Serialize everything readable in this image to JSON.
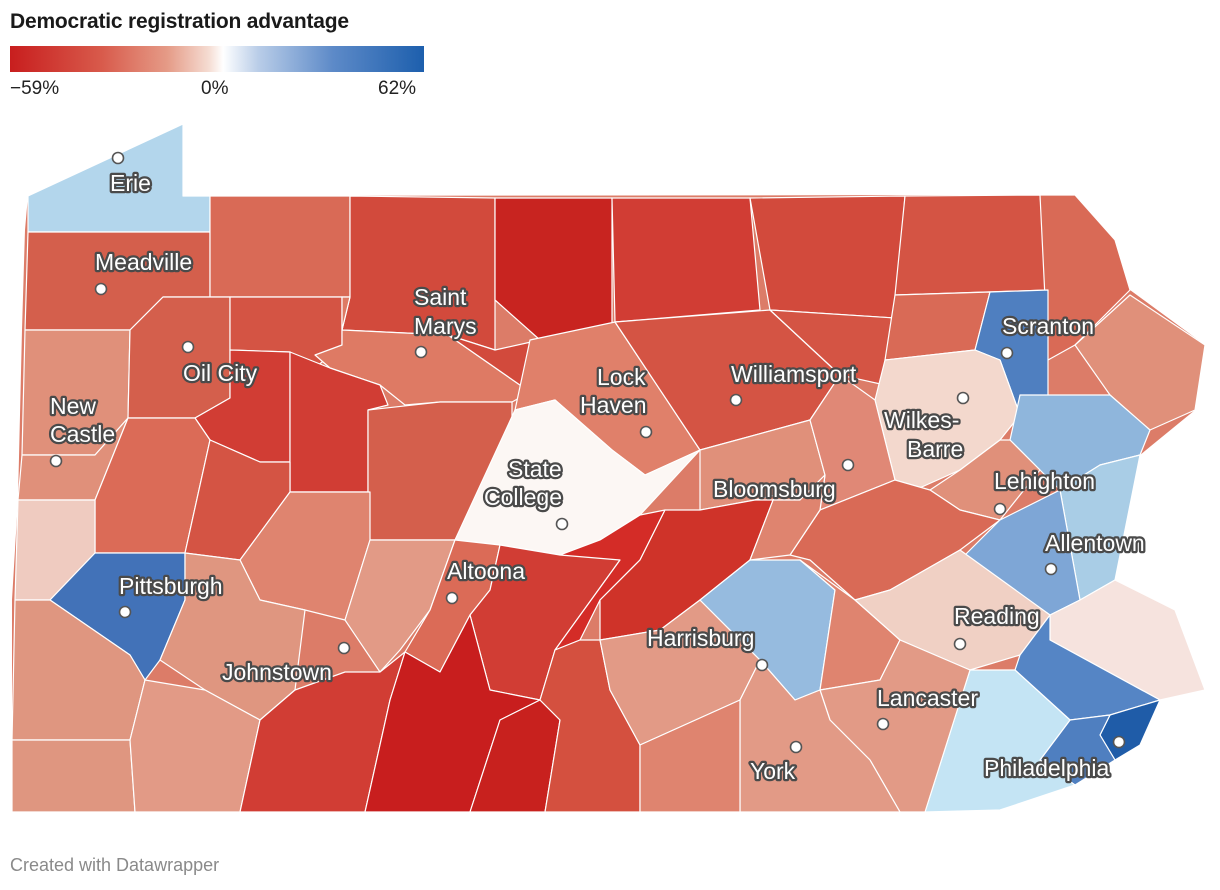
{
  "legend": {
    "title": "Democratic registration advantage",
    "min_label": "−59%",
    "mid_label": "0%",
    "max_label": "62%",
    "min_value": -59,
    "max_value": 62,
    "colors": {
      "low": "#c81e1e",
      "mid": "#ffffff",
      "high": "#1d5fad"
    }
  },
  "footer": "Created with Datawrapper",
  "cities": [
    {
      "name": "Erie",
      "lines": [
        "Erie"
      ]
    },
    {
      "name": "Meadville",
      "lines": [
        "Meadville"
      ]
    },
    {
      "name": "Oil City",
      "lines": [
        "Oil City"
      ]
    },
    {
      "name": "New Castle",
      "lines": [
        "New",
        "Castle"
      ]
    },
    {
      "name": "Saint Marys",
      "lines": [
        "Saint",
        "Marys"
      ]
    },
    {
      "name": "Lock Haven",
      "lines": [
        "Lock",
        "Haven"
      ]
    },
    {
      "name": "Williamsport",
      "lines": [
        "Williamsport"
      ]
    },
    {
      "name": "Scranton",
      "lines": [
        "Scranton"
      ]
    },
    {
      "name": "Wilkes-Barre",
      "lines": [
        "Wilkes-",
        "Barre"
      ]
    },
    {
      "name": "State College",
      "lines": [
        "State",
        "College"
      ]
    },
    {
      "name": "Bloomsburg",
      "lines": [
        "Bloomsburg"
      ]
    },
    {
      "name": "Lehighton",
      "lines": [
        "Lehighton"
      ]
    },
    {
      "name": "Allentown",
      "lines": [
        "Allentown"
      ]
    },
    {
      "name": "Pittsburgh",
      "lines": [
        "Pittsburgh"
      ]
    },
    {
      "name": "Altoona",
      "lines": [
        "Altoona"
      ]
    },
    {
      "name": "Reading",
      "lines": [
        "Reading"
      ]
    },
    {
      "name": "Harrisburg",
      "lines": [
        "Harrisburg"
      ]
    },
    {
      "name": "Johnstown",
      "lines": [
        "Johnstown"
      ]
    },
    {
      "name": "Lancaster",
      "lines": [
        "Lancaster"
      ]
    },
    {
      "name": "York",
      "lines": [
        "York"
      ]
    },
    {
      "name": "Philadelphia",
      "lines": [
        "Philadelphia"
      ]
    }
  ]
}
